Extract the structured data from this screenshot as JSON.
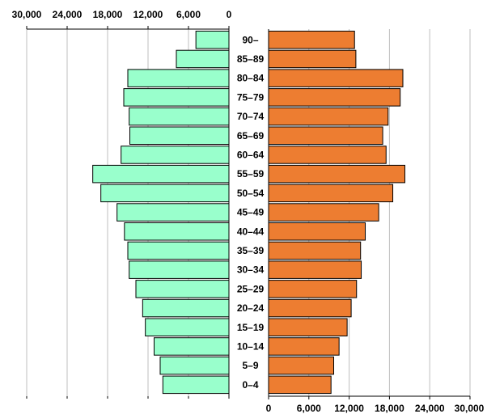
{
  "chart_data": {
    "type": "bar",
    "orientation": "horizontal",
    "layout": "population-pyramid",
    "categories": [
      "0-4",
      "5-9",
      "10-14",
      "15-19",
      "20-24",
      "25-29",
      "30-34",
      "35-39",
      "40-44",
      "45-49",
      "50-54",
      "55-59",
      "60-64",
      "65-69",
      "70-74",
      "75-79",
      "80-84",
      "85-89",
      "90-"
    ],
    "category_labels": [
      "0–4",
      "5–9",
      "10–14",
      "15–19",
      "20–24",
      "25–29",
      "30–34",
      "35–39",
      "40–44",
      "45–49",
      "50–54",
      "55–59",
      "60–64",
      "65–69",
      "70–74",
      "75–79",
      "80–84",
      "85–89",
      "90–"
    ],
    "series": [
      {
        "side": "left",
        "color": "#99ffcc",
        "values": [
          9800,
          10200,
          11100,
          12400,
          12800,
          13800,
          14800,
          15000,
          15500,
          16600,
          19000,
          20200,
          16000,
          14700,
          14800,
          15600,
          15000,
          7800,
          4900
        ]
      },
      {
        "side": "right",
        "color": "#ed7d31",
        "values": [
          9300,
          9700,
          10500,
          11700,
          12300,
          13100,
          13800,
          13700,
          14400,
          16400,
          18500,
          20300,
          17500,
          17000,
          17800,
          19600,
          20000,
          13000,
          12800
        ]
      }
    ],
    "left_axis": {
      "ticks": [
        30000,
        24000,
        18000,
        12000,
        6000,
        0
      ],
      "tick_labels": [
        "30,000",
        "24,000",
        "18,000",
        "12,000",
        "6,000",
        "0"
      ],
      "position": "top"
    },
    "right_axis": {
      "ticks": [
        0,
        6000,
        12000,
        18000,
        24000,
        30000
      ],
      "tick_labels": [
        "0",
        "6,000",
        "12,000",
        "18,000",
        "24,000",
        "30,000"
      ],
      "position": "bottom"
    },
    "xlim": [
      0,
      30000
    ],
    "grid": true
  }
}
